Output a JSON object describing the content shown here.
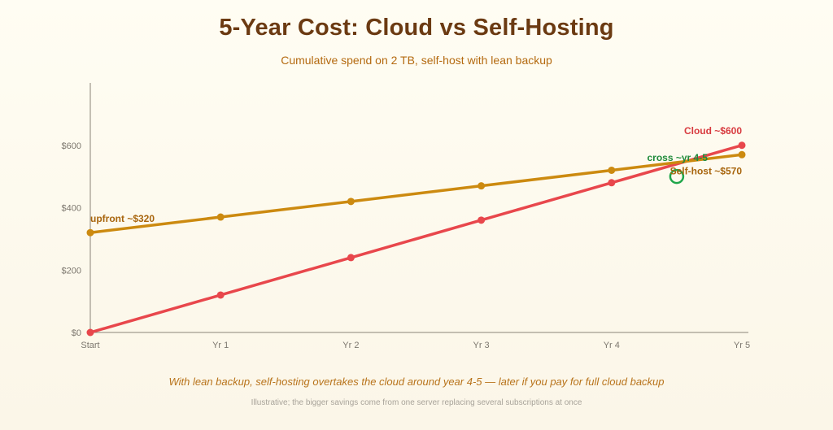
{
  "header": {
    "title": "5-Year Cost: Cloud vs Self-Hosting",
    "subtitle": "Cumulative spend on 2 TB, self-host with lean backup"
  },
  "footer": {
    "note": "With lean backup, self-hosting overtakes the cloud around year 4-5 — later if you pay for full cloud backup",
    "footnote": "Illustrative; the bigger savings come from one server replacing several subscriptions at once"
  },
  "chart_data": {
    "type": "line",
    "title": "5-Year Cost: Cloud vs Self-Hosting",
    "subtitle": "Cumulative spend on 2 TB, self-host with lean backup",
    "xlabel": "",
    "ylabel": "",
    "categories": [
      "Start",
      "Yr 1",
      "Yr 2",
      "Yr 3",
      "Yr 4",
      "Yr 5"
    ],
    "ylim": [
      0,
      800
    ],
    "yticks": [
      0,
      200,
      400,
      600
    ],
    "ytick_labels": [
      "$0",
      "$200",
      "$400",
      "$600"
    ],
    "grid": false,
    "series": [
      {
        "name": "Cloud",
        "color": "#e8474c",
        "values": [
          0,
          120,
          240,
          360,
          480,
          600
        ]
      },
      {
        "name": "Self-host",
        "color": "#cc8a10",
        "values": [
          320,
          370,
          420,
          470,
          520,
          570
        ]
      }
    ],
    "annotations": [
      {
        "text": "upfront ~$320",
        "color": "#a8650d",
        "series": 1,
        "index": 0
      },
      {
        "text": "Cloud ~$600",
        "color": "#d83a3f",
        "series": 0,
        "index": 5
      },
      {
        "text": "Self-host ~$570",
        "color": "#a8650d",
        "series": 1,
        "index": 5
      },
      {
        "text": "cross ~yr 4-5",
        "color": "#1f8a3a",
        "x": 4.5,
        "y": 500
      }
    ],
    "crossover_marker": {
      "color": "#1fa64a",
      "x": 4.5,
      "y": 500
    }
  }
}
